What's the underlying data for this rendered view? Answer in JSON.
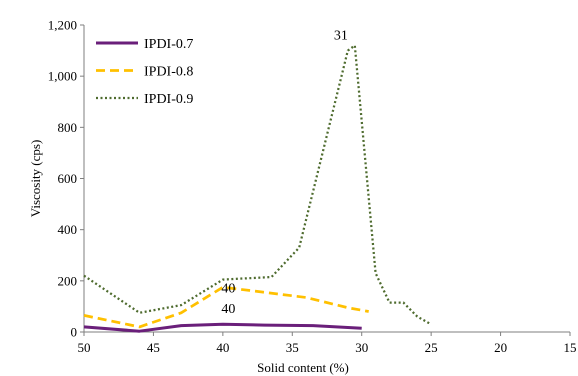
{
  "chart_data": {
    "type": "line",
    "xlabel": "Solid content (%)",
    "ylabel": "Viscosity (cps)",
    "xlim": [
      50,
      15
    ],
    "ylim": [
      0,
      1200
    ],
    "x_reversed": true,
    "grid": false,
    "legend_placement": "top-left",
    "x_ticks": [
      "50",
      "45",
      "40",
      "35",
      "30",
      "25",
      "20",
      "15"
    ],
    "x_tick_values": [
      50,
      45,
      40,
      35,
      30,
      25,
      20,
      15
    ],
    "y_ticks": [
      "0",
      "200",
      "400",
      "600",
      "800",
      "1,000",
      "1,200"
    ],
    "y_tick_values": [
      0,
      200,
      400,
      600,
      800,
      1000,
      1200
    ],
    "series": [
      {
        "name": "IPDI-0.7",
        "color": "#6a1f7a",
        "style": "solid",
        "x": [
          50,
          46,
          43,
          40,
          37,
          33.5,
          30
        ],
        "y": [
          20,
          3,
          25,
          30,
          27,
          25,
          15
        ]
      },
      {
        "name": "IPDI-0.8",
        "color": "#ffc000",
        "style": "dashed",
        "x": [
          50,
          46,
          43,
          40,
          37,
          34,
          31,
          29.5
        ],
        "y": [
          65,
          20,
          75,
          175,
          155,
          135,
          95,
          80
        ]
      },
      {
        "name": "IPDI-0.9",
        "color": "#4e6b2e",
        "style": "dotted",
        "x": [
          50,
          46,
          43,
          40,
          36.5,
          34.5,
          31,
          30.5,
          29,
          28,
          27,
          26,
          25
        ],
        "y": [
          220,
          75,
          105,
          205,
          215,
          330,
          1100,
          1120,
          230,
          115,
          115,
          60,
          30
        ]
      }
    ],
    "annotations": [
      {
        "text": "31",
        "x": 31.5,
        "y": 1120
      },
      {
        "text": "40",
        "x": 39.6,
        "y": 130
      },
      {
        "text": "40",
        "x": 39.6,
        "y": 50
      }
    ]
  }
}
